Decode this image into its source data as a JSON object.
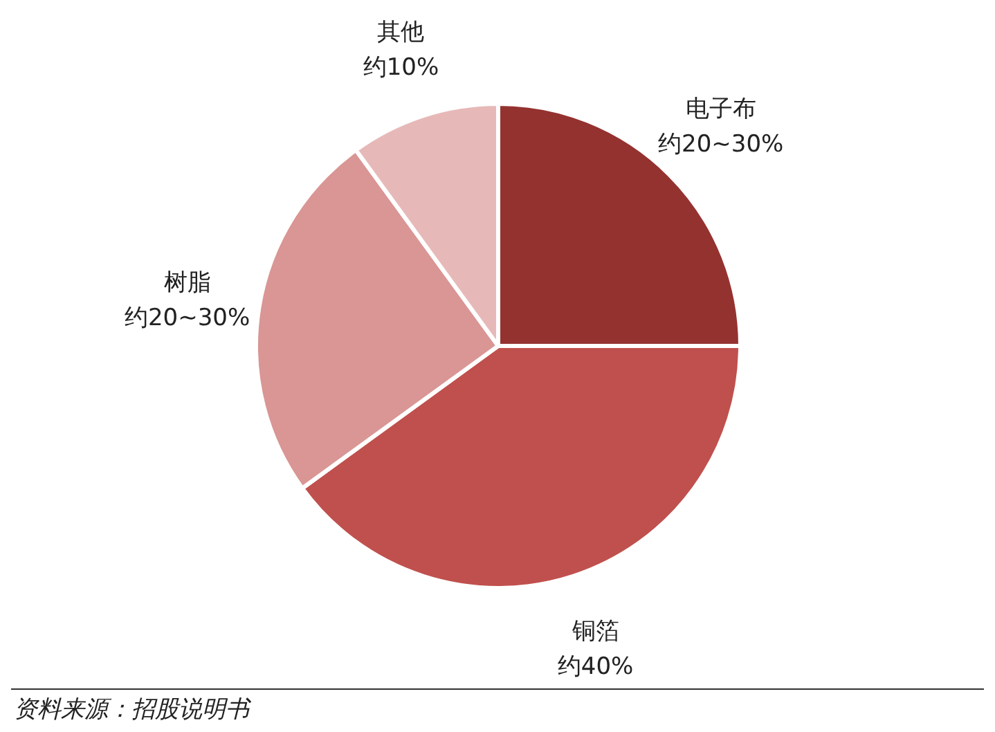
{
  "chart_data": {
    "type": "pie",
    "categories": [
      "电子布",
      "铜箔",
      "树脂",
      "其他"
    ],
    "values": [
      25,
      40,
      25,
      10
    ],
    "colors": [
      "#943230",
      "#c0504d",
      "#d99694",
      "#e6b9b8"
    ],
    "annotations": [
      {
        "text": "约20~30%",
        "x": "电子布"
      },
      {
        "text": "约40%",
        "x": "铜箔"
      },
      {
        "text": "约20~30%",
        "x": "树脂"
      },
      {
        "text": "约10%",
        "x": "其他"
      },
      "资料来源：招股说明书"
    ]
  }
}
